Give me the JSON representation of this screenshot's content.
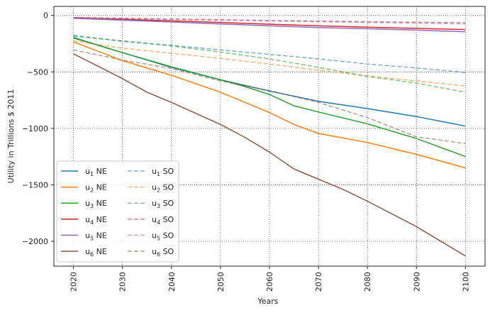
{
  "chart_data": {
    "type": "line",
    "xlabel": "Years",
    "ylabel": "Utility in Trillions $ 2011",
    "xlim": [
      2016,
      2104
    ],
    "ylim": [
      -2220,
      80
    ],
    "x_ticks": [
      2020,
      2030,
      2040,
      2050,
      2060,
      2070,
      2080,
      2090,
      2100
    ],
    "y_ticks": [
      0,
      -500,
      -1000,
      -1500,
      -2000
    ],
    "y_tick_labels": [
      "0",
      "−500",
      "−1000",
      "−1500",
      "−2000"
    ],
    "grid": true,
    "legend_placement": "lower-left",
    "series": [
      {
        "name": "u",
        "sub": "1",
        "suffix": " NE",
        "color": "#1f77b4",
        "dashed": false,
        "x": [
          2020,
          2030,
          2040,
          2050,
          2060,
          2070,
          2080,
          2090,
          2100
        ],
        "y": [
          -195,
          -330,
          -460,
          -570,
          -670,
          -760,
          -825,
          -895,
          -980
        ]
      },
      {
        "name": "u",
        "sub": "2",
        "suffix": " NE",
        "color": "#ff7f0e",
        "dashed": false,
        "x": [
          2020,
          2030,
          2040,
          2050,
          2060,
          2065,
          2070,
          2080,
          2090,
          2100
        ],
        "y": [
          -235,
          -400,
          -530,
          -680,
          -860,
          -965,
          -1045,
          -1125,
          -1230,
          -1350
        ]
      },
      {
        "name": "u",
        "sub": "3",
        "suffix": " NE",
        "color": "#2ca02c",
        "dashed": false,
        "x": [
          2020,
          2030,
          2040,
          2050,
          2055,
          2060,
          2065,
          2070,
          2080,
          2090,
          2100
        ],
        "y": [
          -200,
          -330,
          -455,
          -570,
          -630,
          -700,
          -800,
          -855,
          -960,
          -1090,
          -1250
        ]
      },
      {
        "name": "u",
        "sub": "4",
        "suffix": " NE",
        "color": "#d62728",
        "dashed": false,
        "x": [
          2020,
          2030,
          2040,
          2050,
          2060,
          2070,
          2080,
          2090,
          2100
        ],
        "y": [
          -20,
          -35,
          -48,
          -62,
          -78,
          -92,
          -104,
          -115,
          -125
        ]
      },
      {
        "name": "u",
        "sub": "5",
        "suffix": " NE",
        "color": "#9467bd",
        "dashed": false,
        "x": [
          2020,
          2030,
          2040,
          2050,
          2060,
          2070,
          2080,
          2090,
          2100
        ],
        "y": [
          -25,
          -42,
          -58,
          -75,
          -92,
          -108,
          -118,
          -130,
          -145
        ]
      },
      {
        "name": "u",
        "sub": "6",
        "suffix": " NE",
        "color": "#8c564b",
        "dashed": false,
        "x": [
          2020,
          2030,
          2035,
          2040,
          2050,
          2055,
          2060,
          2065,
          2070,
          2075,
          2080,
          2090,
          2100
        ],
        "y": [
          -340,
          -560,
          -680,
          -770,
          -965,
          -1080,
          -1210,
          -1360,
          -1450,
          -1540,
          -1645,
          -1870,
          -2130
        ]
      },
      {
        "name": "u",
        "sub": "1",
        "suffix": " SO",
        "color": "#1f77b4",
        "dashed": true,
        "x": [
          2020,
          2030,
          2040,
          2050,
          2060,
          2070,
          2080,
          2090,
          2100
        ],
        "y": [
          -175,
          -230,
          -265,
          -305,
          -345,
          -385,
          -430,
          -465,
          -505
        ]
      },
      {
        "name": "u",
        "sub": "2",
        "suffix": " SO",
        "color": "#ff7f0e",
        "dashed": true,
        "x": [
          2020,
          2030,
          2040,
          2050,
          2060,
          2070,
          2080,
          2090,
          2100
        ],
        "y": [
          -225,
          -290,
          -335,
          -380,
          -430,
          -485,
          -535,
          -580,
          -625
        ]
      },
      {
        "name": "u",
        "sub": "3",
        "suffix": " SO",
        "color": "#2ca02c",
        "dashed": true,
        "x": [
          2020,
          2030,
          2040,
          2050,
          2060,
          2070,
          2080,
          2090,
          2100
        ],
        "y": [
          -185,
          -225,
          -270,
          -325,
          -385,
          -460,
          -540,
          -600,
          -680
        ]
      },
      {
        "name": "u",
        "sub": "4",
        "suffix": " SO",
        "color": "#d62728",
        "dashed": true,
        "x": [
          2020,
          2030,
          2040,
          2050,
          2060,
          2070,
          2080,
          2090,
          2100
        ],
        "y": [
          -18,
          -25,
          -32,
          -38,
          -45,
          -50,
          -56,
          -60,
          -65
        ]
      },
      {
        "name": "u",
        "sub": "5",
        "suffix": " SO",
        "color": "#9467bd",
        "dashed": true,
        "x": [
          2020,
          2030,
          2040,
          2050,
          2060,
          2070,
          2080,
          2090,
          2100
        ],
        "y": [
          -20,
          -28,
          -35,
          -42,
          -48,
          -55,
          -62,
          -68,
          -75
        ]
      },
      {
        "name": "u",
        "sub": "6",
        "suffix": " SO",
        "color": "#8c564b",
        "dashed": true,
        "x": [
          2020,
          2030,
          2040,
          2050,
          2060,
          2070,
          2080,
          2090,
          2100
        ],
        "y": [
          -305,
          -395,
          -470,
          -580,
          -665,
          -770,
          -905,
          -1075,
          -1135
        ]
      }
    ]
  }
}
